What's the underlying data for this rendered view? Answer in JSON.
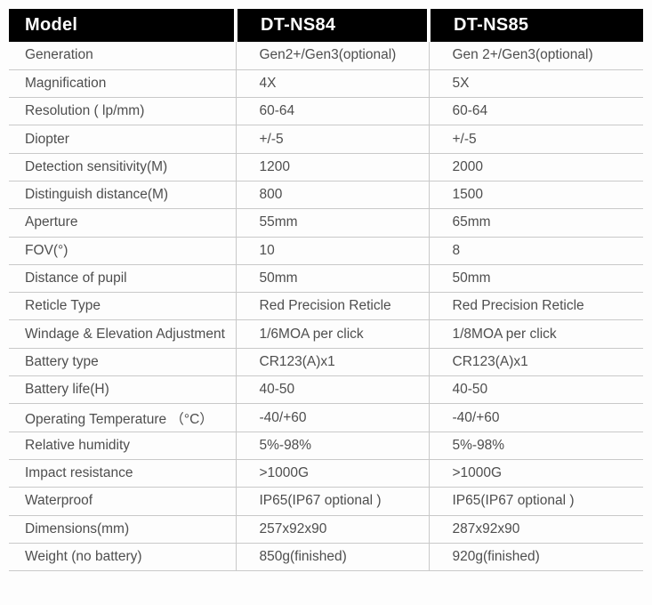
{
  "table": {
    "header": [
      "Model",
      "DT-NS84",
      "DT-NS85"
    ],
    "rows": [
      {
        "label": "Generation",
        "ns84": "Gen2+/Gen3(optional)",
        "ns85": "Gen 2+/Gen3(optional)"
      },
      {
        "label": "Magnification",
        "ns84": "4X",
        "ns85": "5X"
      },
      {
        "label": "Resolution ( lp/mm)",
        "ns84": "60-64",
        "ns85": "60-64"
      },
      {
        "label": "Diopter",
        "ns84": "+/-5",
        "ns85": "+/-5"
      },
      {
        "label": "Detection sensitivity(M)",
        "ns84": "1200",
        "ns85": "2000"
      },
      {
        "label": "Distinguish distance(M)",
        "ns84": "800",
        "ns85": "1500"
      },
      {
        "label": "Aperture",
        "ns84": "55mm",
        "ns85": "65mm"
      },
      {
        "label": "FOV(°)",
        "ns84": "10",
        "ns85": "8"
      },
      {
        "label": "Distance of pupil",
        "ns84": "50mm",
        "ns85": "50mm"
      },
      {
        "label": "Reticle Type",
        "ns84": "Red Precision Reticle",
        "ns85": "Red Precision Reticle"
      },
      {
        "label": "Windage & Elevation Adjustment",
        "ns84": "1/6MOA per click",
        "ns85": "1/8MOA per click"
      },
      {
        "label": "Battery type",
        "ns84": "CR123(A)x1",
        "ns85": "CR123(A)x1"
      },
      {
        "label": "Battery life(H)",
        "ns84": "40-50",
        "ns85": "40-50"
      },
      {
        "label": "Operating Temperature （°C）",
        "ns84": "-40/+60",
        "ns85": "-40/+60"
      },
      {
        "label": "Relative humidity",
        "ns84": "5%-98%",
        "ns85": "5%-98%"
      },
      {
        "label": "Impact resistance",
        "ns84": ">1000G",
        "ns85": ">1000G"
      },
      {
        "label": "Waterproof",
        "ns84": "IP65(IP67 optional )",
        "ns85": "IP65(IP67 optional )"
      },
      {
        "label": "Dimensions(mm)",
        "ns84": "257x92x90",
        "ns85": "287x92x90"
      },
      {
        "label": "Weight (no battery)",
        "ns84": "850g(finished)",
        "ns85": "920g(finished)"
      }
    ]
  },
  "colors": {
    "header_bg": "#000000",
    "header_text": "#ffffff",
    "body_text": "#4e4e4e",
    "border": "#c9c9c9"
  }
}
